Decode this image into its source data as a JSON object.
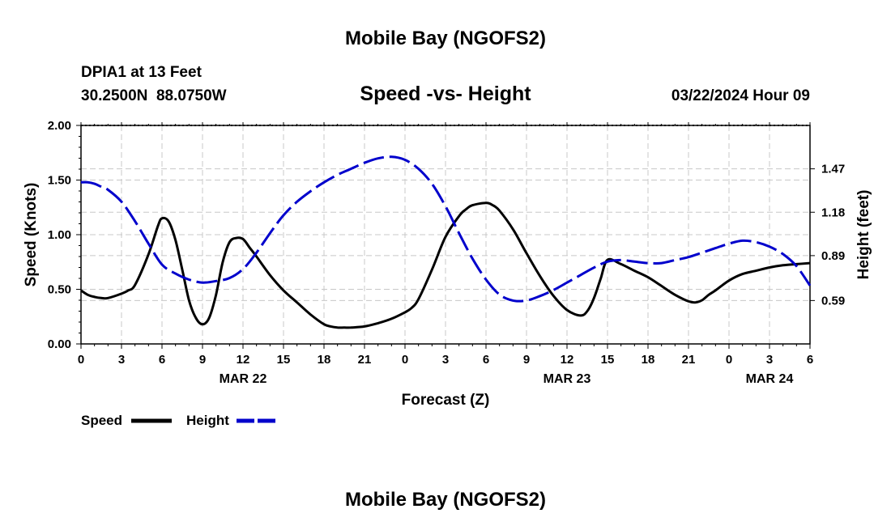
{
  "page": {
    "top_title": "Mobile Bay (NGOFS2)",
    "bottom_title": "Mobile Bay (NGOFS2)",
    "station_line": "DPIA1 at 13 Feet",
    "coords_line": "30.2500N  88.0750W",
    "datetime": "03/22/2024 Hour 09"
  },
  "chart_data": {
    "type": "line",
    "title": "Speed -vs- Height",
    "xlabel": "Forecast (Z)",
    "ylabel": "Speed (Knots)",
    "y2label": "Height (feet)",
    "x_range": [
      0,
      54
    ],
    "ylim": [
      0,
      2.0
    ],
    "y2lim": [
      0.3,
      1.76
    ],
    "x_ticks": [
      0,
      3,
      6,
      9,
      12,
      15,
      18,
      21,
      24,
      27,
      30,
      33,
      36,
      39,
      42,
      45,
      48,
      51,
      54
    ],
    "x_tick_labels": [
      "0",
      "3",
      "6",
      "9",
      "12",
      "15",
      "18",
      "21",
      "0",
      "3",
      "6",
      "9",
      "12",
      "15",
      "18",
      "21",
      "0",
      "3",
      "6"
    ],
    "y_ticks": [
      0,
      0.5,
      1.0,
      1.5,
      2.0
    ],
    "y_tick_labels": [
      "0.00",
      "0.50",
      "1.00",
      "1.50",
      "2.00"
    ],
    "y2_ticks": [
      0.59,
      0.89,
      1.18,
      1.47
    ],
    "y2_tick_labels": [
      "0.59",
      "0.89",
      "1.18",
      "1.47"
    ],
    "date_labels": [
      {
        "x": 12,
        "label": "MAR 22"
      },
      {
        "x": 36,
        "label": "MAR 23"
      },
      {
        "x": 51,
        "label": "MAR 24"
      }
    ],
    "grid": true,
    "legend": {
      "placement": "bottom-left",
      "items": [
        "Speed",
        "Height"
      ]
    },
    "series": [
      {
        "name": "Speed",
        "axis": "left",
        "color": "#000000",
        "style": "solid",
        "x": [
          0,
          0.5,
          1,
          1.5,
          2,
          3,
          3.5,
          4,
          5,
          5.7,
          6,
          6.5,
          7,
          7.5,
          8,
          8.5,
          9,
          9.5,
          10,
          10.5,
          11,
          11.5,
          12,
          12.5,
          13,
          14,
          15,
          16,
          17,
          18,
          18.5,
          19,
          19.5,
          20,
          21,
          22,
          23,
          24,
          24.5,
          25,
          26,
          27,
          28,
          28.5,
          29,
          30,
          30.5,
          31,
          32,
          33,
          34,
          35,
          36,
          37,
          37.5,
          38,
          38.5,
          39,
          40,
          41,
          42,
          43,
          44,
          45,
          45.5,
          46,
          46.5,
          47,
          48,
          49,
          50,
          51,
          52,
          53,
          54
        ],
        "values": [
          0.49,
          0.45,
          0.43,
          0.42,
          0.42,
          0.46,
          0.49,
          0.54,
          0.82,
          1.08,
          1.15,
          1.12,
          0.95,
          0.68,
          0.4,
          0.24,
          0.18,
          0.24,
          0.45,
          0.75,
          0.93,
          0.97,
          0.96,
          0.88,
          0.8,
          0.63,
          0.49,
          0.38,
          0.27,
          0.18,
          0.16,
          0.15,
          0.15,
          0.15,
          0.16,
          0.19,
          0.23,
          0.29,
          0.33,
          0.41,
          0.68,
          0.98,
          1.17,
          1.23,
          1.27,
          1.29,
          1.27,
          1.22,
          1.05,
          0.83,
          0.62,
          0.44,
          0.31,
          0.26,
          0.3,
          0.42,
          0.6,
          0.77,
          0.73,
          0.67,
          0.61,
          0.53,
          0.45,
          0.39,
          0.38,
          0.4,
          0.45,
          0.49,
          0.58,
          0.64,
          0.67,
          0.7,
          0.72,
          0.73,
          0.74
        ]
      },
      {
        "name": "Height",
        "axis": "right",
        "color": "#0000cc",
        "style": "dashed",
        "x": [
          0,
          0.5,
          1,
          1.5,
          2,
          3,
          4,
          5,
          6,
          7,
          8,
          9,
          10,
          11,
          12,
          13,
          14,
          15,
          16,
          17,
          18,
          19,
          20,
          21,
          22,
          23,
          24,
          25,
          26,
          27,
          28,
          29,
          30,
          31,
          32,
          33,
          34,
          35,
          36,
          37,
          38,
          39,
          40,
          41,
          42,
          43,
          44,
          45,
          46,
          47,
          48,
          49,
          50,
          51,
          52,
          53,
          54
        ],
        "values": [
          1.38,
          1.38,
          1.37,
          1.35,
          1.33,
          1.25,
          1.12,
          0.97,
          0.83,
          0.77,
          0.73,
          0.71,
          0.72,
          0.74,
          0.8,
          0.91,
          1.04,
          1.16,
          1.25,
          1.32,
          1.38,
          1.43,
          1.47,
          1.51,
          1.54,
          1.55,
          1.53,
          1.47,
          1.37,
          1.22,
          1.04,
          0.87,
          0.73,
          0.63,
          0.59,
          0.59,
          0.62,
          0.66,
          0.71,
          0.76,
          0.81,
          0.85,
          0.86,
          0.85,
          0.84,
          0.84,
          0.86,
          0.88,
          0.91,
          0.94,
          0.97,
          0.99,
          0.98,
          0.95,
          0.9,
          0.82,
          0.69
        ]
      }
    ]
  }
}
